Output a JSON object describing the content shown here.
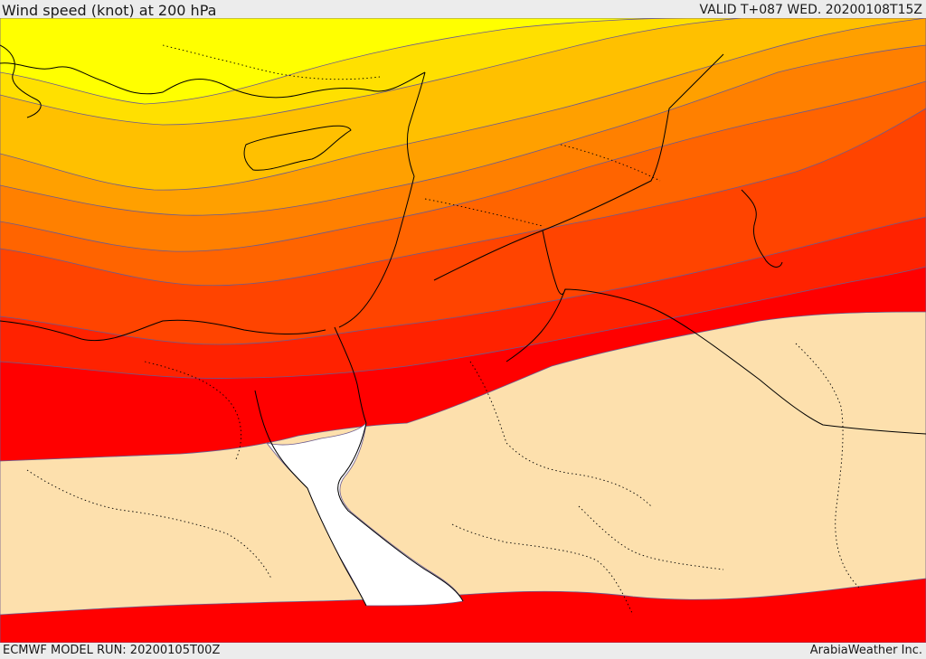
{
  "header": {
    "title": "Wind speed (knot) at 200 hPa",
    "valid": "VALID T+087 WED. 20200108T15Z"
  },
  "footer": {
    "model_run": "ECMWF MODEL RUN: 20200105T00Z",
    "provider": "ArabiaWeather Inc."
  },
  "colors": {
    "band_1": "#ffff00",
    "band_2": "#ffe000",
    "band_3": "#ffc000",
    "band_4": "#ffa000",
    "band_5": "#ff8000",
    "band_6": "#ff6400",
    "band_7": "#ff4400",
    "band_8": "#ff2200",
    "band_9": "#ff0000",
    "calm_fill": "#fde0ad",
    "sea_gap": "#ffffff"
  }
}
